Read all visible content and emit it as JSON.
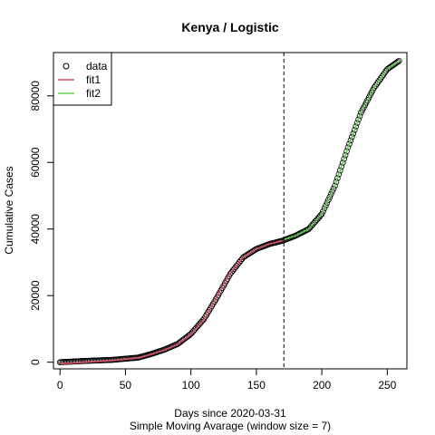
{
  "chart_data": {
    "type": "scatter",
    "title": "Kenya / Logistic",
    "xlabel": "Days since 2020-03-31",
    "subtitle": "Simple Moving Avarage (window size = 7)",
    "ylabel": "Cumulative Cases",
    "xlim": [
      -5,
      265
    ],
    "ylim": [
      -2000,
      93000
    ],
    "xticks": [
      0,
      50,
      100,
      150,
      200,
      250
    ],
    "yticks": [
      0,
      20000,
      40000,
      60000,
      80000
    ],
    "vline_x": 171,
    "legend": {
      "position": "top-left",
      "entries": [
        {
          "label": "data",
          "symbol": "circle",
          "color": "#000000"
        },
        {
          "label": "fit1",
          "symbol": "line",
          "color": "#DF536B"
        },
        {
          "label": "fit2",
          "symbol": "line",
          "color": "#61D04F"
        }
      ]
    },
    "data_points": {
      "x": [
        0,
        20,
        40,
        60,
        70,
        80,
        90,
        100,
        110,
        120,
        130,
        140,
        150,
        160,
        170,
        180,
        190,
        200,
        210,
        220,
        230,
        240,
        250,
        259
      ],
      "y": [
        0,
        400,
        700,
        1400,
        2500,
        3800,
        5500,
        8500,
        13000,
        19500,
        26500,
        31500,
        34000,
        35500,
        36500,
        38000,
        40000,
        44500,
        53000,
        64500,
        75000,
        82500,
        88000,
        90500
      ]
    },
    "series": [
      {
        "name": "fit1",
        "color": "#DF536B",
        "x": [
          0,
          20,
          40,
          60,
          70,
          80,
          90,
          100,
          110,
          120,
          130,
          140,
          150,
          160,
          170
        ],
        "y": [
          -500,
          0,
          500,
          1300,
          2400,
          3700,
          5400,
          8300,
          12800,
          19800,
          26800,
          31500,
          34000,
          35500,
          36500
        ]
      },
      {
        "name": "fit2",
        "color": "#61D04F",
        "x": [
          171,
          180,
          190,
          200,
          210,
          220,
          230,
          240,
          250,
          259
        ],
        "y": [
          36800,
          38000,
          40000,
          44500,
          53000,
          64500,
          75000,
          82500,
          88000,
          90500
        ]
      }
    ],
    "grid": false
  }
}
